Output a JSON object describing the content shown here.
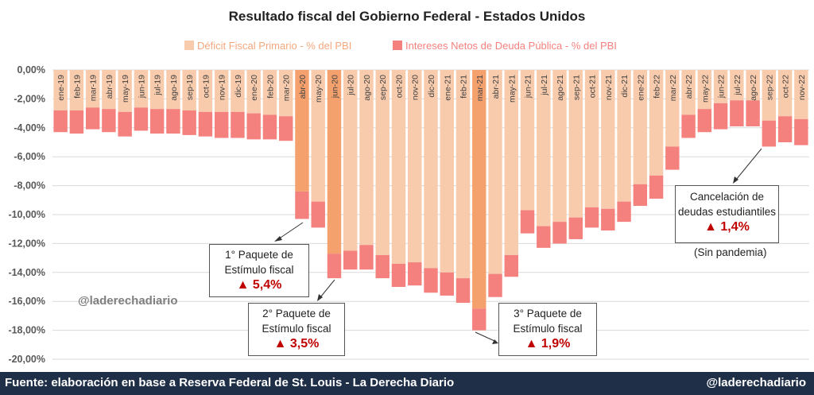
{
  "chart_data": {
    "type": "bar",
    "stacked": true,
    "title": "Resultado fiscal del Gobierno Federal - Estados Unidos",
    "categories": [
      "ene-19",
      "feb-19",
      "mar-19",
      "abr-19",
      "may-19",
      "jun-19",
      "jul-19",
      "ago-19",
      "sep-19",
      "oct-19",
      "nov-19",
      "dic-19",
      "ene-20",
      "feb-20",
      "mar-20",
      "abr-20",
      "may-20",
      "jun-20",
      "jul-20",
      "ago-20",
      "sep-20",
      "oct-20",
      "nov-20",
      "dic-20",
      "ene-21",
      "feb-21",
      "mar-21",
      "abr-21",
      "may-21",
      "jun-21",
      "jul-21",
      "ago-21",
      "sep-21",
      "oct-21",
      "nov-21",
      "dic-21",
      "ene-22",
      "feb-22",
      "mar-22",
      "abr-22",
      "may-22",
      "jun-22",
      "jul-22",
      "ago-22",
      "sep-22",
      "oct-22",
      "nov-22"
    ],
    "tick_labels_shown": [
      "ene-19",
      "feb-19",
      "mar-19",
      "abr-19",
      "may-19",
      "jun-19",
      "jul-19",
      "ago-19",
      "sep-19",
      "oct-19",
      "nov-19",
      "dic-19",
      "ene-20",
      "feb-20",
      "mar-20",
      "abr-20",
      "may-20",
      "jun-20",
      "jul-20",
      "ago-20",
      "sep-20",
      "oct-20",
      "nov-20",
      "dic-20",
      "ene-21",
      "feb-21",
      "mar-21",
      "abr-21",
      "may-21",
      "jun-21",
      "jul-21",
      "ago-21",
      "sep-21",
      "oct-21",
      "nov-21",
      "dic-21",
      "ene-22",
      "feb-22",
      "mar-22",
      "abr-22",
      "may-22",
      "jun-22",
      "jul-22",
      "ago-22",
      "sep-22",
      "oct-22",
      "nov-22"
    ],
    "series": [
      {
        "name": "Déficit Fiscal Primario - % del PBI",
        "color": "#f8cbad",
        "values": [
          -2.8,
          -2.8,
          -2.6,
          -2.7,
          -2.9,
          -2.6,
          -2.7,
          -2.7,
          -2.8,
          -2.9,
          -2.9,
          -2.9,
          -3.0,
          -3.1,
          -3.2,
          -8.4,
          -9.1,
          -12.7,
          -12.5,
          -12.1,
          -12.8,
          -13.4,
          -13.3,
          -13.7,
          -14.0,
          -14.4,
          -16.5,
          -14.1,
          -12.8,
          -9.7,
          -10.8,
          -10.5,
          -10.2,
          -9.5,
          -9.6,
          -9.1,
          -7.9,
          -7.3,
          -5.3,
          -3.1,
          -2.7,
          -2.3,
          -2.1,
          -2.1,
          -3.5,
          -3.2,
          -3.4
        ]
      },
      {
        "name": "Intereses Netos de Deuda Pública - % del PBI",
        "color": "#f4817e",
        "values": [
          -1.5,
          -1.6,
          -1.5,
          -1.6,
          -1.7,
          -1.6,
          -1.7,
          -1.7,
          -1.7,
          -1.7,
          -1.8,
          -1.8,
          -1.8,
          -1.7,
          -1.7,
          -1.9,
          -1.8,
          -1.7,
          -1.3,
          -1.7,
          -1.6,
          -1.6,
          -1.6,
          -1.7,
          -1.6,
          -1.7,
          -1.5,
          -1.6,
          -1.5,
          -1.6,
          -1.5,
          -1.5,
          -1.5,
          -1.4,
          -1.5,
          -1.4,
          -1.5,
          -1.6,
          -1.6,
          -1.6,
          -1.6,
          -1.8,
          -1.8,
          -1.8,
          -1.8,
          -1.8,
          -1.8
        ]
      }
    ],
    "highlighted_primary": [
      "abr-20",
      "jun-20",
      "mar-21"
    ],
    "highlight_color": "#f4a16e",
    "ylim": [
      -20,
      0
    ],
    "yticks": [
      "0,00%",
      "-2,00%",
      "-4,00%",
      "-6,00%",
      "-8,00%",
      "-10,00%",
      "-12,00%",
      "-14,00%",
      "-16,00%",
      "-18,00%",
      "-20,00%"
    ],
    "legend_position": "top",
    "grid": true
  },
  "annotations": {
    "a1": {
      "line1": "1° Paquete de",
      "line2": "Estímulo fiscal",
      "value": "▲ 5,4%"
    },
    "a2": {
      "line1": "2° Paquete de",
      "line2": "Estímulo fiscal",
      "value": "▲ 3,5%"
    },
    "a3": {
      "line1": "3° Paquete de",
      "line2": "Estímulo fiscal",
      "value": "▲ 1,9%"
    },
    "a4": {
      "line1": "Cancelación de",
      "line2": "deudas estudiantiles",
      "value": "▲ 1,4%"
    },
    "note": "(Sin pandemia)"
  },
  "watermark": "@laderechadiario",
  "footer": {
    "source": "Fuente: elaboración en base a Reserva Federal de St. Louis - La Derecha Diario",
    "handle": "@laderechadiario"
  }
}
